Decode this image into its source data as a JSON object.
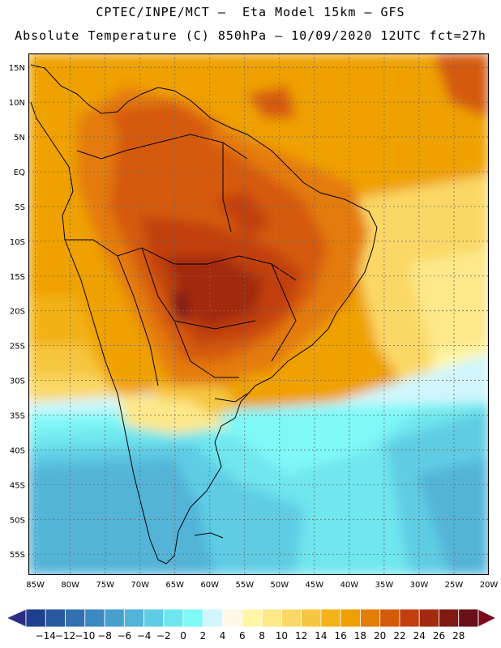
{
  "header": {
    "line1": "CPTEC/INPE/MCT –  Eta Model 15km – GFS",
    "line2": "Absolute Temperature (C) 850hPa – 10/09/2020 12UTC fct=27h"
  },
  "map": {
    "lon_labels": [
      "85W",
      "80W",
      "75W",
      "70W",
      "65W",
      "60W",
      "55W",
      "50W",
      "45W",
      "40W",
      "35W",
      "30W",
      "25W",
      "20W"
    ],
    "lat_labels": [
      "15N",
      "10N",
      "5N",
      "EQ",
      "5S",
      "10S",
      "15S",
      "20S",
      "25S",
      "30S",
      "35S",
      "40S",
      "45S",
      "50S",
      "55S"
    ],
    "lon_values": [
      -85,
      -80,
      -75,
      -70,
      -65,
      -60,
      -55,
      -50,
      -45,
      -40,
      -35,
      -30,
      -25,
      -20
    ],
    "lat_values": [
      15,
      10,
      5,
      0,
      -5,
      -10,
      -15,
      -20,
      -25,
      -30,
      -35,
      -40,
      -45,
      -50,
      -55
    ],
    "lon_range": [
      -86,
      -20
    ],
    "lat_range": [
      -58,
      17
    ],
    "grid": true,
    "field": "temperature shading"
  },
  "colorbar": {
    "labels": [
      "-14",
      "-12",
      "-10",
      "-8",
      "-6",
      "-4",
      "-2",
      "0",
      "2",
      "4",
      "6",
      "8",
      "10",
      "12",
      "14",
      "16",
      "18",
      "20",
      "22",
      "24",
      "26",
      "28"
    ],
    "colors": [
      "#1f3f8f",
      "#2a58a0",
      "#3370b0",
      "#3c88c0",
      "#47a0cc",
      "#52b4d8",
      "#5ecce4",
      "#6fe6ee",
      "#7ff8f8",
      "#d0f6fb",
      "#fff8e6",
      "#fff6a8",
      "#fde88a",
      "#fbd866",
      "#f6c640",
      "#f2b218",
      "#eea000",
      "#e47c08",
      "#d65a0a",
      "#c24010",
      "#a32a10",
      "#7e1a12",
      "#6a1018"
    ],
    "under_color": "#2a2f85",
    "over_color": "#7a0a1c"
  }
}
